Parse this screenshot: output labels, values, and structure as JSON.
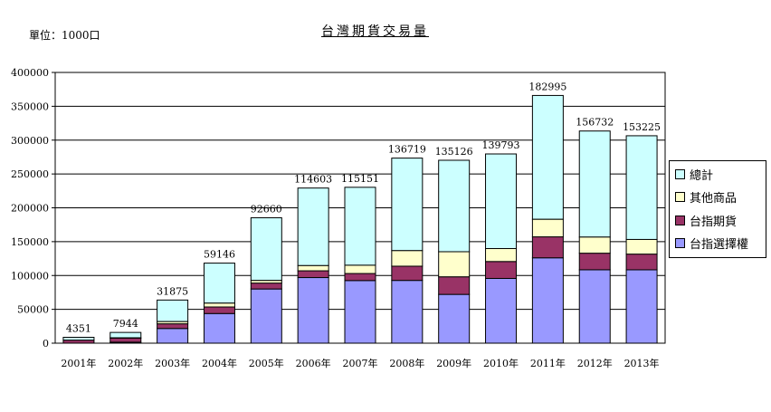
{
  "page": {
    "unit_label": "單位：1000口",
    "title": "台灣期貨交易量"
  },
  "chart_data": {
    "type": "bar",
    "stacked": true,
    "categories": [
      "2001年",
      "2002年",
      "2003年",
      "2004年",
      "2005年",
      "2006年",
      "2007年",
      "2008年",
      "2009年",
      "2010年",
      "2011年",
      "2012年",
      "2013年"
    ],
    "series": [
      {
        "name": "台指選擇權",
        "color": "#9999ff",
        "values": [
          0,
          1500,
          21720,
          43824,
          80096,
          96943,
          92537,
          92757,
          72082,
          95667,
          126114,
          108449,
          108401
        ]
      },
      {
        "name": "台指期貨",
        "color": "#993366",
        "values": [
          4351,
          5944,
          6900,
          9677,
          8700,
          10000,
          10400,
          21000,
          26000,
          25000,
          31000,
          24500,
          23200
        ]
      },
      {
        "name": "其他商品",
        "color": "#ffffcc",
        "values": [
          0,
          500,
          3255,
          5645,
          3864,
          7660,
          12214,
          22962,
          37044,
          19126,
          25881,
          23783,
          21624
        ]
      }
    ],
    "totals": {
      "name": "總計",
      "color": "#ccffff",
      "values": [
        4351,
        7944,
        31875,
        59146,
        92660,
        114603,
        115151,
        136719,
        135126,
        139793,
        182995,
        156732,
        153225
      ]
    },
    "total_labels": [
      "4351",
      "7944",
      "31875",
      "59146",
      "92660",
      "114603",
      "115151",
      "136719",
      "135126",
      "139793",
      "182995",
      "156732",
      "153225"
    ],
    "ylim": [
      0,
      400000
    ],
    "yticks": [
      0,
      50000,
      100000,
      150000,
      200000,
      250000,
      300000,
      350000,
      400000
    ],
    "ytick_labels": [
      "0",
      "50000",
      "100000",
      "150000",
      "200000",
      "250000",
      "300000",
      "350000",
      "400000"
    ],
    "grid": true,
    "legend_position": "right",
    "legend_order": [
      "總計",
      "其他商品",
      "台指期貨",
      "台指選擇權"
    ],
    "legend_colors": [
      "#ccffff",
      "#ffffcc",
      "#993366",
      "#9999ff"
    ]
  }
}
